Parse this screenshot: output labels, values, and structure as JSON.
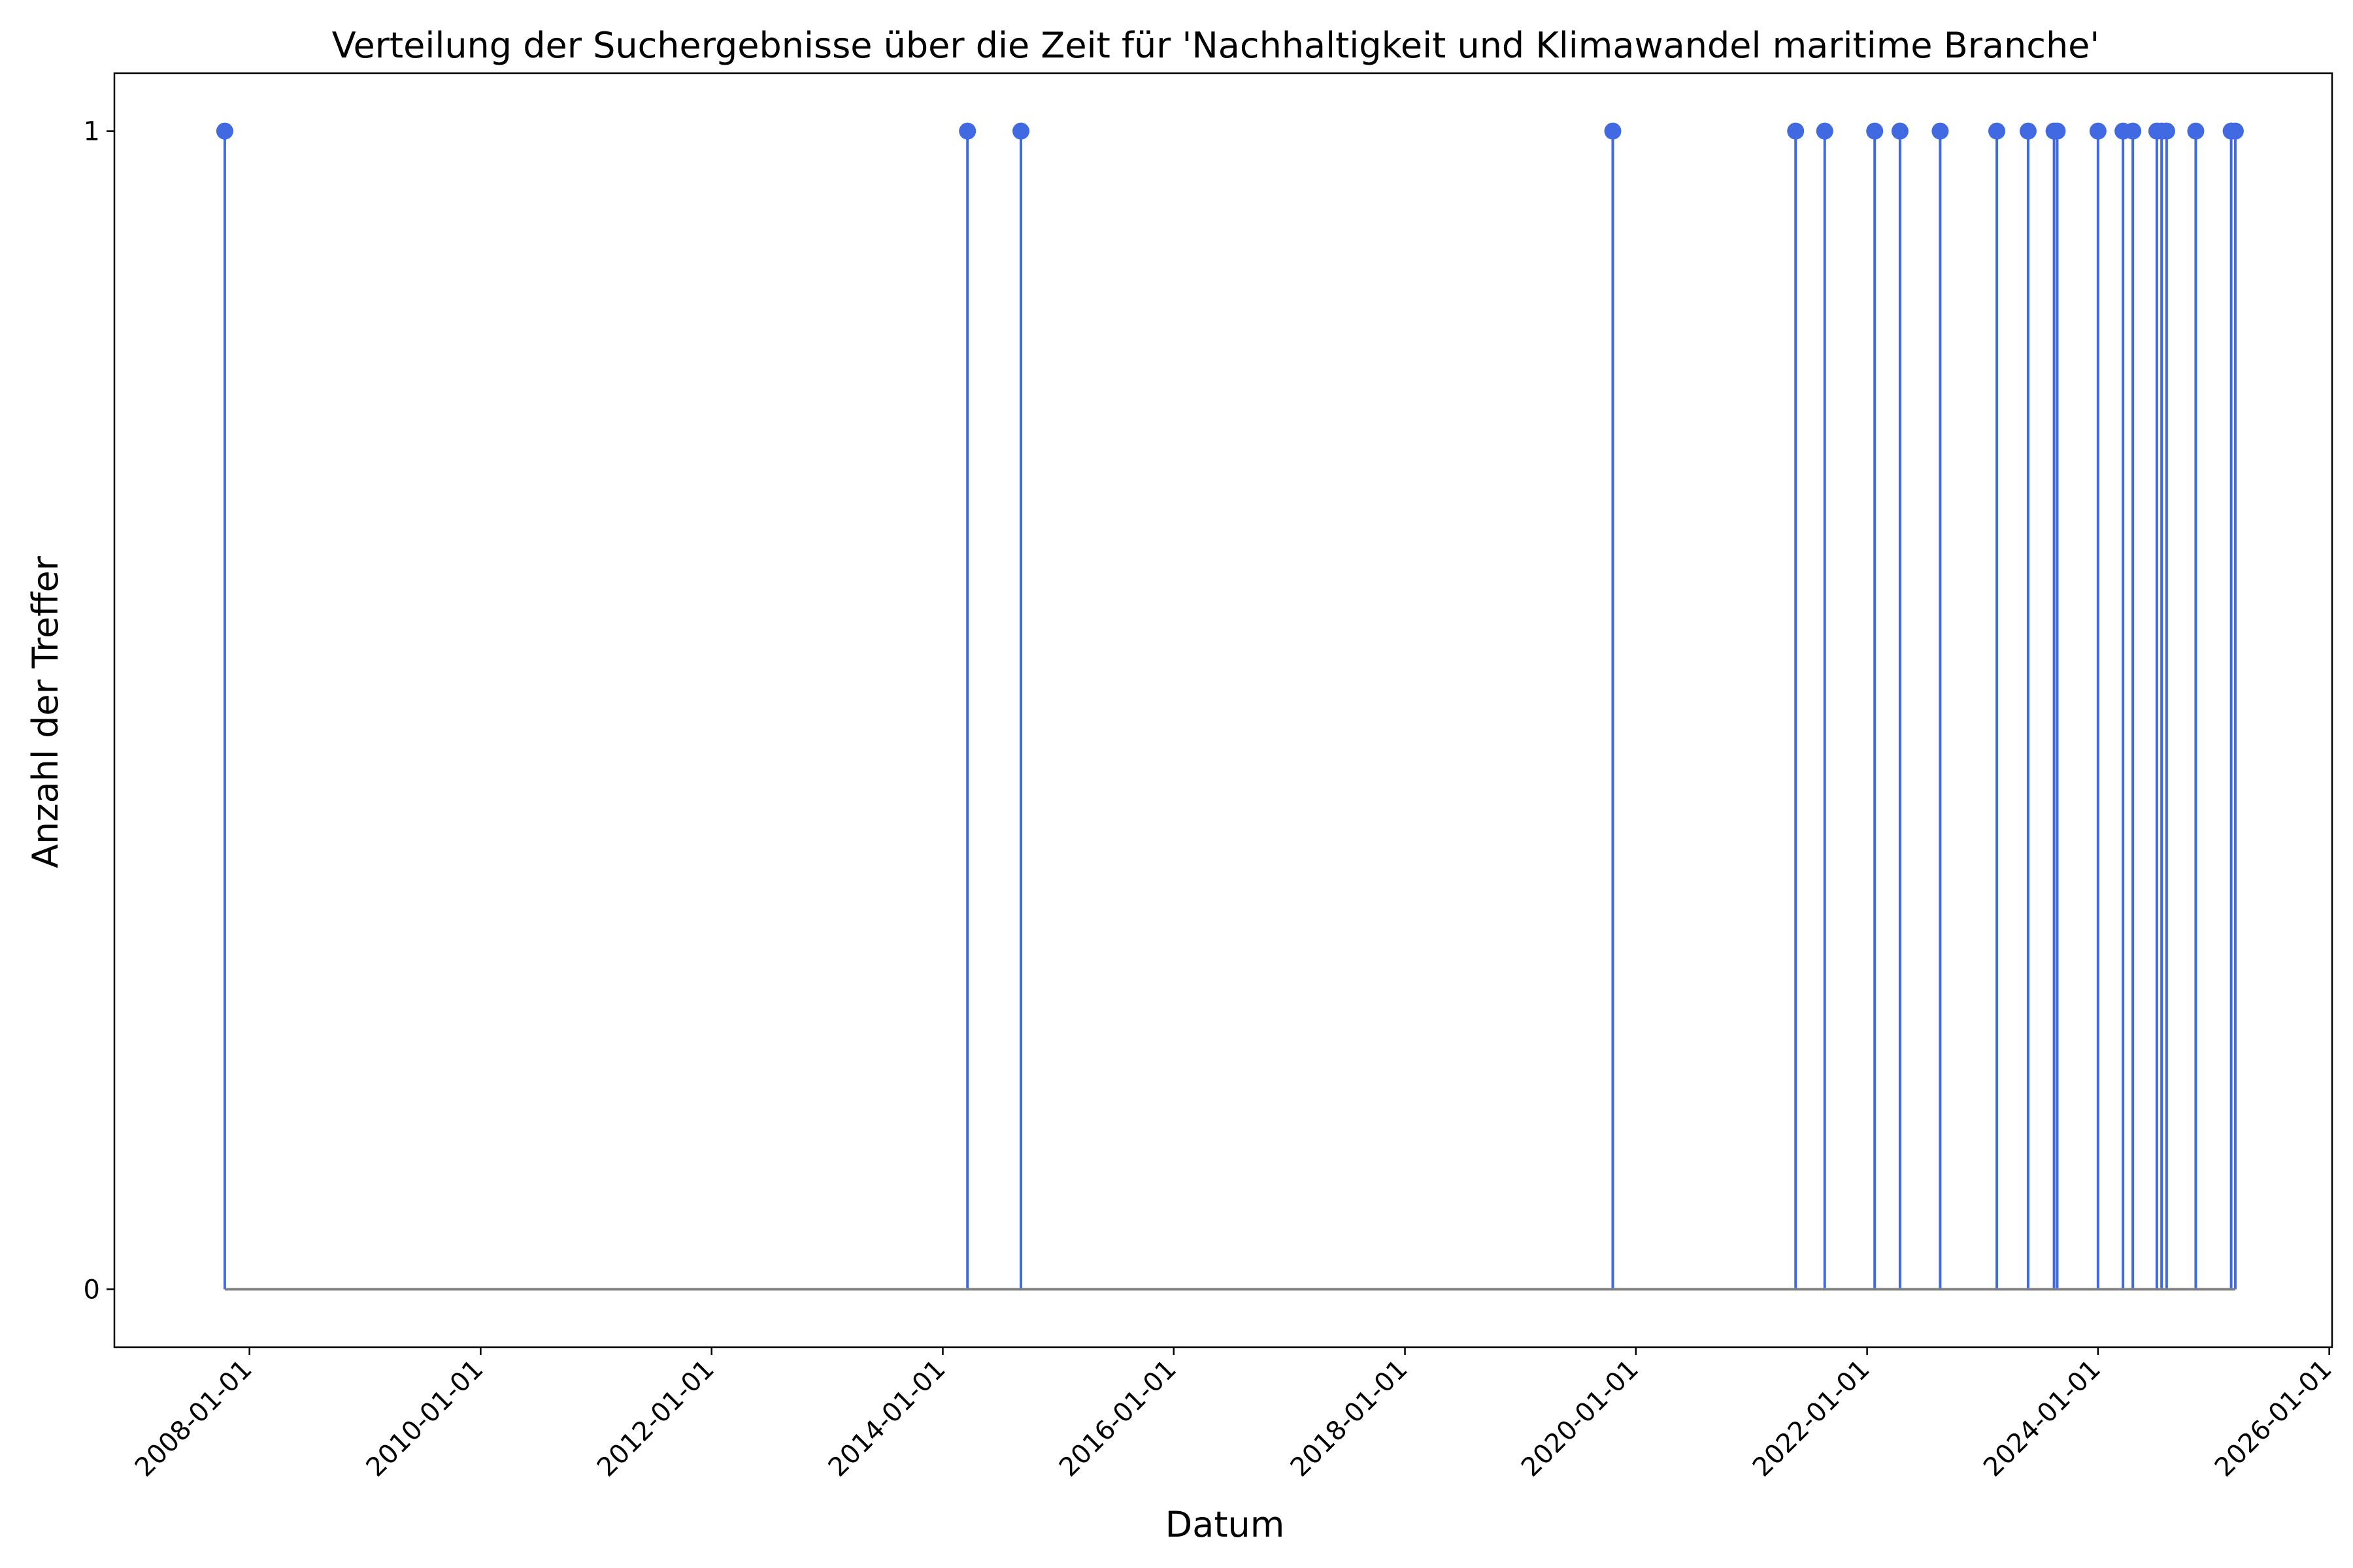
{
  "chart_data": {
    "type": "stem",
    "title": "Verteilung der Suchergebnisse über die Zeit für 'Nachhaltigkeit und Klimawandel maritime Branche'",
    "xlabel": "Datum",
    "ylabel": "Anzahl der Treffer",
    "xlim": [
      "2006-10-31",
      "2026-01-10"
    ],
    "ylim": [
      -0.05,
      1.05
    ],
    "x_ticks": [
      "2008-01-01",
      "2010-01-01",
      "2012-01-01",
      "2014-01-01",
      "2016-01-01",
      "2018-01-01",
      "2020-01-01",
      "2022-01-01",
      "2024-01-01",
      "2026-01-01"
    ],
    "y_ticks": [
      0,
      1
    ],
    "grid": false,
    "legend": "none",
    "baseline": 0,
    "marker_color": "#4169e1",
    "baseline_color": "#808080",
    "points": [
      {
        "x": "2007-10-15",
        "y": 1
      },
      {
        "x": "2014-03-20",
        "y": 1
      },
      {
        "x": "2014-09-05",
        "y": 1
      },
      {
        "x": "2019-10-20",
        "y": 1
      },
      {
        "x": "2021-05-20",
        "y": 1
      },
      {
        "x": "2021-08-20",
        "y": 1
      },
      {
        "x": "2022-01-25",
        "y": 1
      },
      {
        "x": "2022-04-15",
        "y": 1
      },
      {
        "x": "2022-08-20",
        "y": 1
      },
      {
        "x": "2023-02-15",
        "y": 1
      },
      {
        "x": "2023-05-25",
        "y": 1
      },
      {
        "x": "2023-08-15",
        "y": 1
      },
      {
        "x": "2023-08-25",
        "y": 1
      },
      {
        "x": "2024-01-01",
        "y": 1
      },
      {
        "x": "2024-03-20",
        "y": 1
      },
      {
        "x": "2024-04-20",
        "y": 1
      },
      {
        "x": "2024-07-05",
        "y": 1
      },
      {
        "x": "2024-07-20",
        "y": 1
      },
      {
        "x": "2024-08-05",
        "y": 1
      },
      {
        "x": "2024-11-05",
        "y": 1
      },
      {
        "x": "2025-02-25",
        "y": 1
      },
      {
        "x": "2025-03-10",
        "y": 1
      }
    ]
  }
}
